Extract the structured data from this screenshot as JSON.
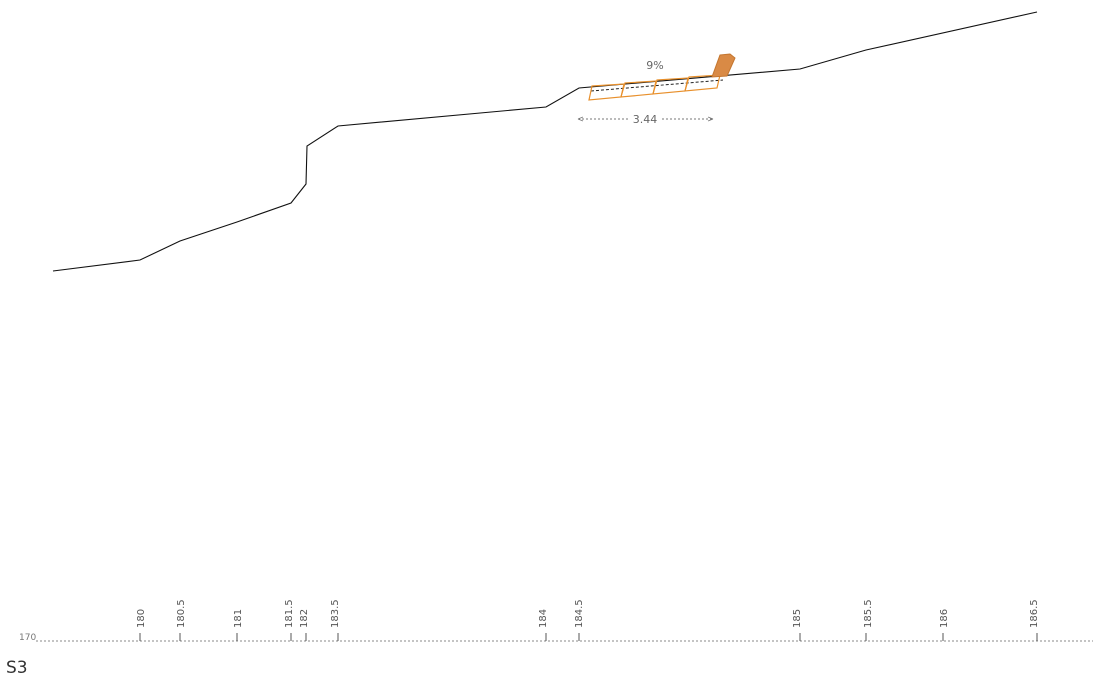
{
  "section": {
    "title": "S3",
    "datum_label": "170"
  },
  "annotations": {
    "slope_label": "9%",
    "length_label": "3.44"
  },
  "chainage_ticks": [
    "180",
    "180.5",
    "181",
    "181.5",
    "182",
    "183.5",
    "184",
    "184.5",
    "185",
    "185.5",
    "186",
    "186.5"
  ],
  "colors": {
    "terrain_line": "#111111",
    "ramp_outline": "#e8902c",
    "ramp_fill": "#d98a45",
    "baseline": "#888888"
  }
}
